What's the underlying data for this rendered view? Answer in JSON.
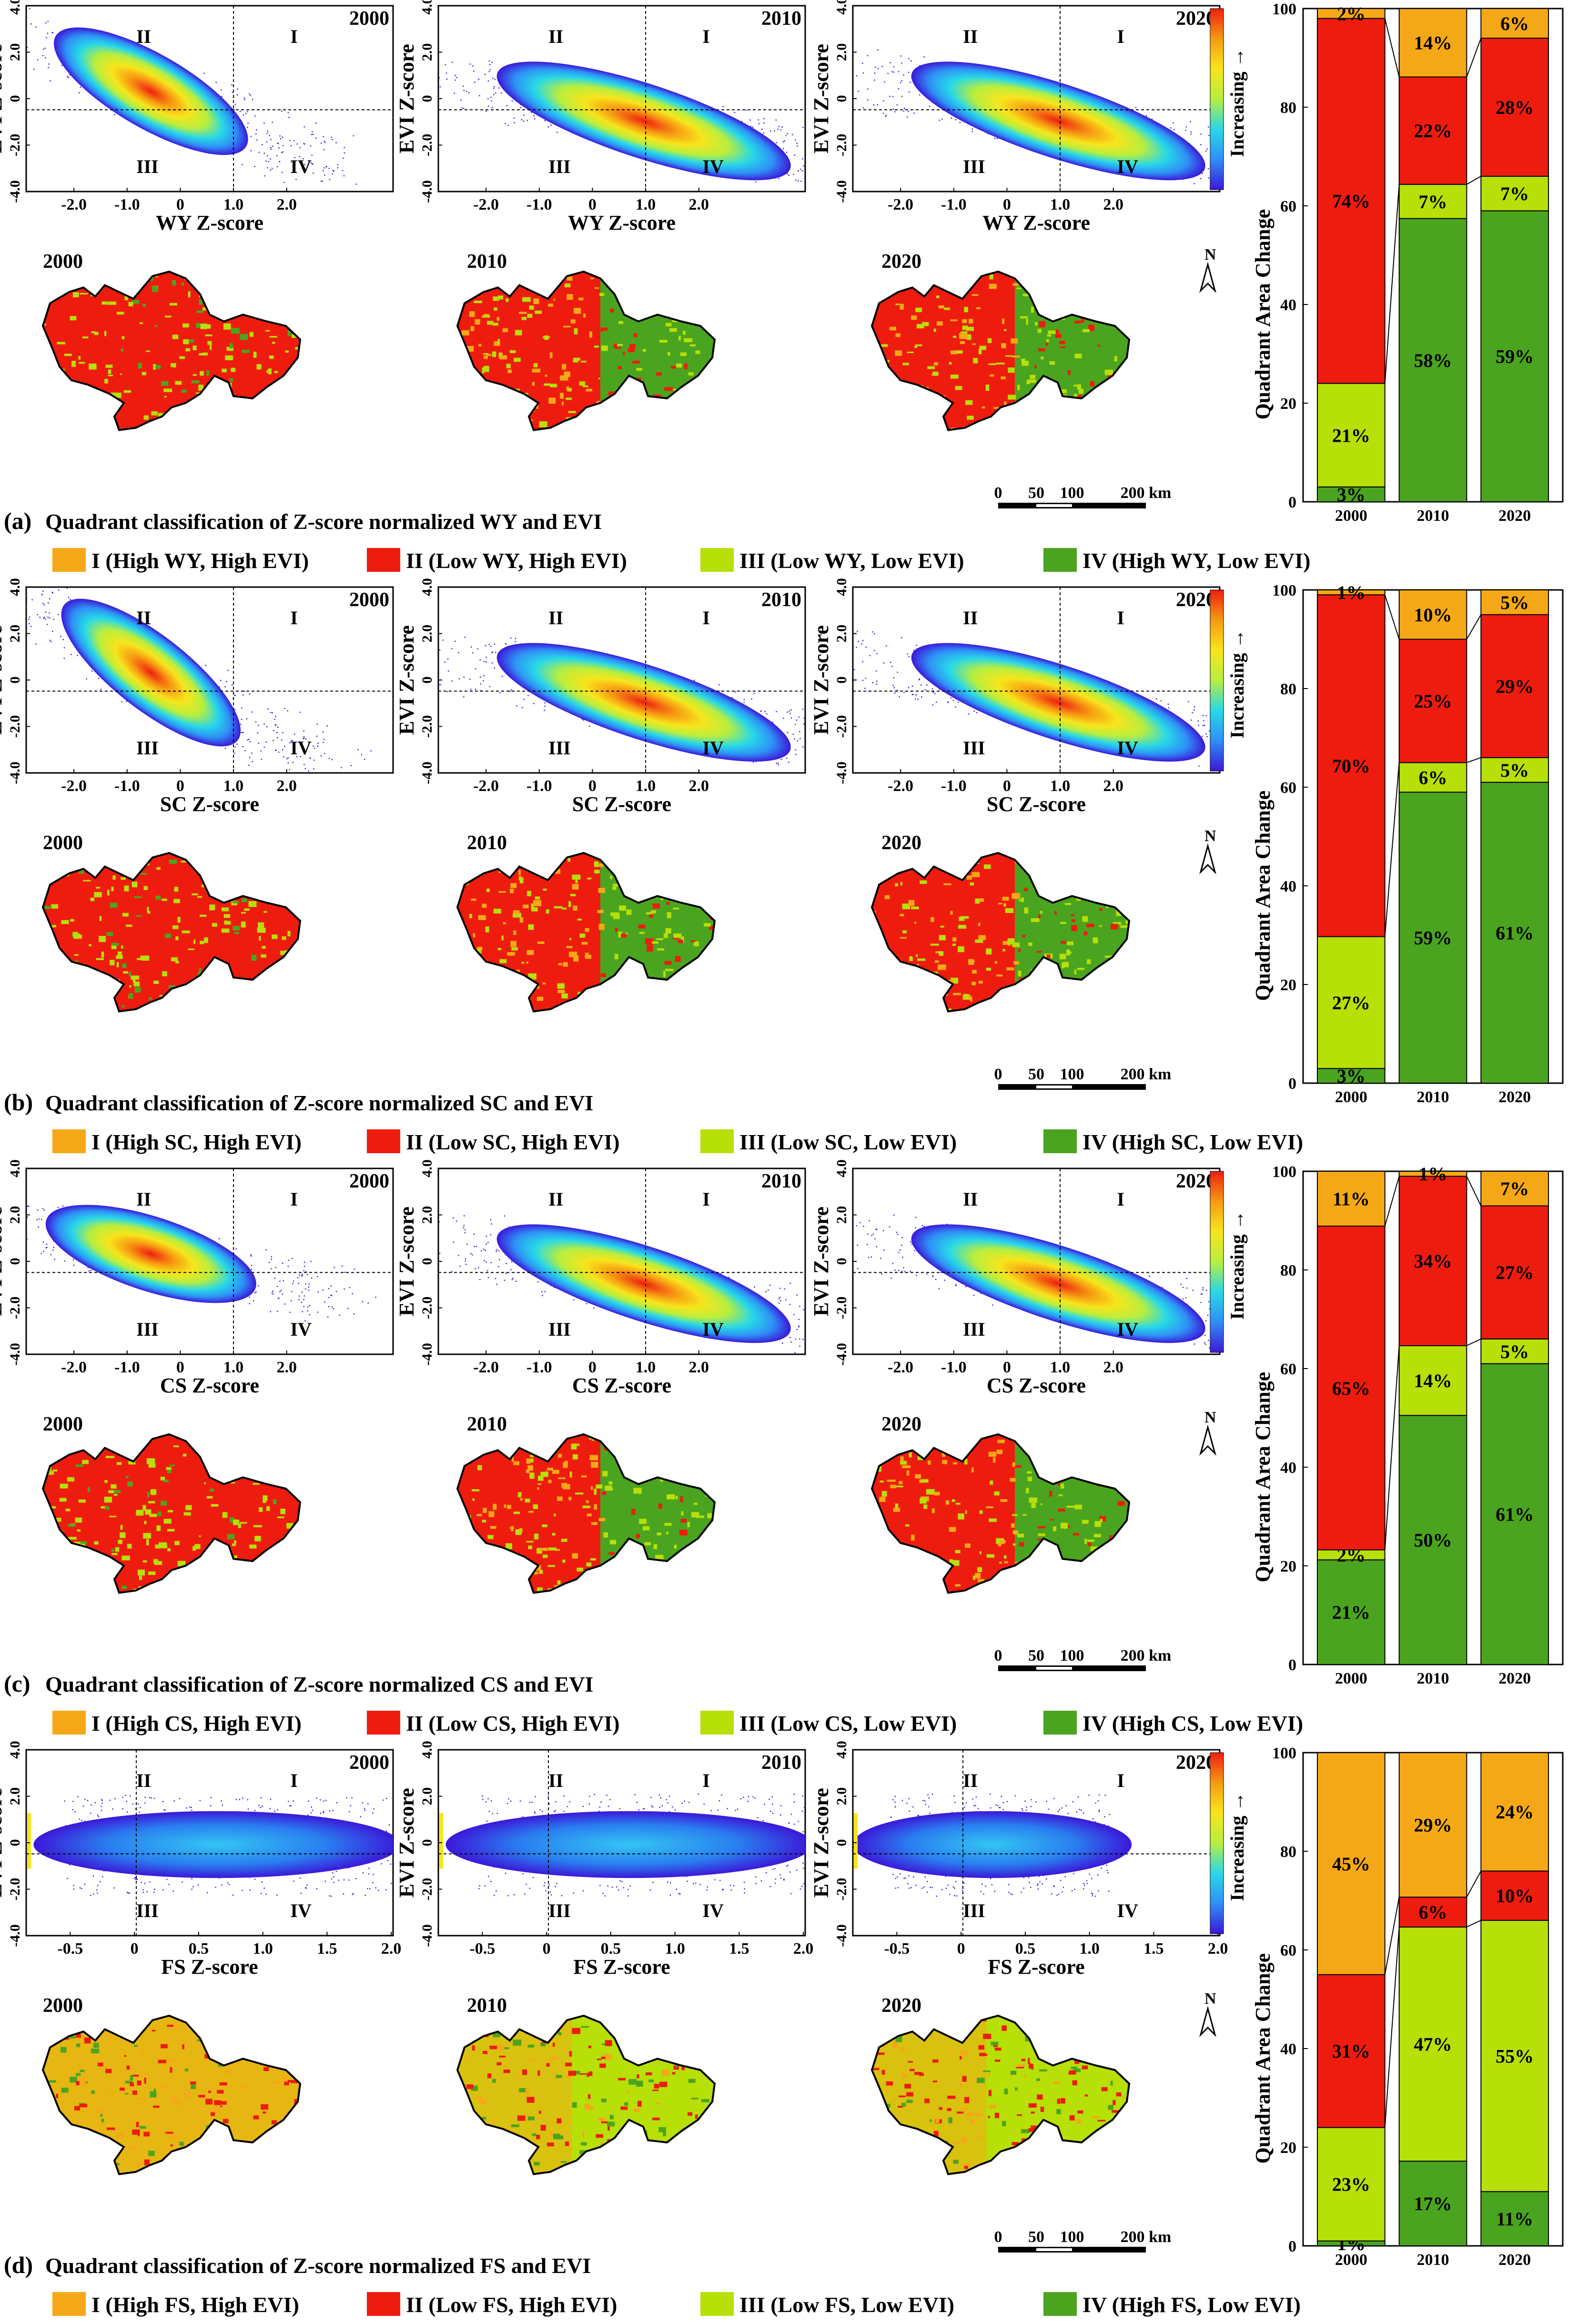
{
  "colors": {
    "q1": "#f5a817",
    "q2": "#ee1c0e",
    "q3": "#b7df08",
    "q4": "#4ba41f",
    "density_ramp": [
      "#3b18d8",
      "#2f8ff6",
      "#27d8e8",
      "#b7ee3f",
      "#f7e51c",
      "#f79a12",
      "#ee1f11"
    ]
  },
  "common": {
    "y_axis_label": "EVI Z-score",
    "colorbar_label": "Increasing →",
    "quadrant_labels": [
      "I",
      "II",
      "III",
      "IV"
    ],
    "north_label": "N",
    "scale_ticks": [
      "0",
      "50",
      "100",
      "200 km"
    ],
    "years": [
      "2000",
      "2010",
      "2020"
    ]
  },
  "panels": [
    {
      "letter": "(a)",
      "title": "Quadrant classification  of Z-score normalized WY and EVI",
      "x_axis_label": "WY Z-score",
      "x_ticks": [
        "-2.0",
        "-1.0",
        "0",
        "1.0",
        "2.0"
      ],
      "y_ticks": [
        "4.0",
        "2.0",
        "0",
        "-2.0",
        "-4.0"
      ],
      "legend": [
        "I (High WY, High EVI)",
        "II (Low WY, High EVI)",
        "III (Low WY, Low EVI)",
        "IV (High WY, Low EVI)"
      ]
    },
    {
      "letter": "(b)",
      "title": "Quadrant classification  of Z-score normalized SC and EVI",
      "x_axis_label": "SC Z-score",
      "x_ticks": [
        "-2.0",
        "-1.0",
        "0",
        "1.0",
        "2.0"
      ],
      "y_ticks": [
        "4.0",
        "2.0",
        "0",
        "-2.0",
        "-4.0"
      ],
      "legend": [
        "I (High SC, High EVI)",
        "II (Low SC, High EVI)",
        "III (Low SC, Low EVI)",
        "IV (High SC, Low EVI)"
      ]
    },
    {
      "letter": "(c)",
      "title": "Quadrant classification  of Z-score normalized CS and EVI",
      "x_axis_label": "CS Z-score",
      "x_ticks": [
        "-2.0",
        "-1.0",
        "0",
        "1.0",
        "2.0"
      ],
      "y_ticks": [
        "4.0",
        "2.0",
        "0",
        "-2.0",
        "-4.0"
      ],
      "legend": [
        "I (High CS, High EVI)",
        "II (Low CS, High EVI)",
        "III (Low CS, Low EVI)",
        "IV (High CS, Low EVI)"
      ]
    },
    {
      "letter": "(d)",
      "title": "Quadrant classification  of Z-score normalized FS and EVI",
      "x_axis_label": "FS Z-score",
      "x_ticks": [
        "-0.5",
        "0",
        "0.5",
        "1.0",
        "1.5",
        "2.0"
      ],
      "y_ticks": [
        "4.0",
        "2.0",
        "0",
        "-2.0",
        "-4.0"
      ],
      "legend": [
        "I (High FS, High EVI)",
        "II (Low FS, High EVI)",
        "III (Low FS, Low EVI)",
        "IV (High FS, Low EVI)"
      ]
    }
  ],
  "chart_data": [
    {
      "type": "bar",
      "stacked": true,
      "panel": "(a)",
      "categories": [
        "2000",
        "2010",
        "2020"
      ],
      "ylabel": "Quadrant Area Change",
      "ylim": [
        0,
        100
      ],
      "y_ticks": [
        "0",
        "20",
        "40",
        "60",
        "80",
        "100"
      ],
      "series": [
        {
          "name": "IV (High WY, Low EVI)",
          "values": [
            3,
            58,
            59
          ],
          "labels": [
            "3%",
            "58%",
            "59%"
          ]
        },
        {
          "name": "III (Low WY, Low EVI)",
          "values": [
            21,
            7,
            7
          ],
          "labels": [
            "21%",
            "7%",
            "7%"
          ]
        },
        {
          "name": "II (Low WY, High EVI)",
          "values": [
            74,
            22,
            28
          ],
          "labels": [
            "74%",
            "22%",
            "28%"
          ]
        },
        {
          "name": "I (High WY, High EVI)",
          "values": [
            2,
            14,
            6
          ],
          "labels": [
            "2%",
            "14%",
            "6%"
          ]
        }
      ]
    },
    {
      "type": "bar",
      "stacked": true,
      "panel": "(b)",
      "categories": [
        "2000",
        "2010",
        "2020"
      ],
      "ylabel": "Quadrant Area Change",
      "ylim": [
        0,
        100
      ],
      "y_ticks": [
        "0",
        "20",
        "40",
        "60",
        "80",
        "100"
      ],
      "series": [
        {
          "name": "IV (High SC, Low EVI)",
          "values": [
            3,
            59,
            61
          ],
          "labels": [
            "3%",
            "59%",
            "61%"
          ]
        },
        {
          "name": "III (Low SC, Low EVI)",
          "values": [
            27,
            6,
            5
          ],
          "labels": [
            "27%",
            "6%",
            "5%"
          ]
        },
        {
          "name": "II (Low SC, High EVI)",
          "values": [
            70,
            25,
            29
          ],
          "labels": [
            "70%",
            "25%",
            "29%"
          ]
        },
        {
          "name": "I (High SC, High EVI)",
          "values": [
            1,
            10,
            5
          ],
          "labels": [
            "1%",
            "10%",
            "5%"
          ]
        }
      ]
    },
    {
      "type": "bar",
      "stacked": true,
      "panel": "(c)",
      "categories": [
        "2000",
        "2010",
        "2020"
      ],
      "ylabel": "Quadrant Area Change",
      "ylim": [
        0,
        100
      ],
      "y_ticks": [
        "0",
        "20",
        "40",
        "60",
        "80",
        "100"
      ],
      "series": [
        {
          "name": "IV (High CS, Low EVI)",
          "values": [
            21,
            50,
            61
          ],
          "labels": [
            "21%",
            "50%",
            "61%"
          ]
        },
        {
          "name": "III (Low CS, Low EVI)",
          "values": [
            2,
            14,
            5
          ],
          "labels": [
            "2%",
            "14%",
            "5%"
          ]
        },
        {
          "name": "II (Low CS, High EVI)",
          "values": [
            65,
            34,
            27
          ],
          "labels": [
            "65%",
            "34%",
            "27%"
          ]
        },
        {
          "name": "I (High CS, High EVI)",
          "values": [
            11,
            1,
            7
          ],
          "labels": [
            "11%",
            "1%",
            "7%"
          ]
        }
      ]
    },
    {
      "type": "bar",
      "stacked": true,
      "panel": "(d)",
      "categories": [
        "2000",
        "2010",
        "2020"
      ],
      "ylabel": "Quadrant Area Change",
      "ylim": [
        0,
        100
      ],
      "y_ticks": [
        "0",
        "20",
        "40",
        "60",
        "80",
        "100"
      ],
      "series": [
        {
          "name": "IV (High FS, Low EVI)",
          "values": [
            1,
            17,
            11
          ],
          "labels": [
            "1%",
            "17%",
            "11%"
          ]
        },
        {
          "name": "III (Low FS, Low EVI)",
          "values": [
            23,
            47,
            55
          ],
          "labels": [
            "23%",
            "47%",
            "55%"
          ]
        },
        {
          "name": "II (Low FS, High EVI)",
          "values": [
            31,
            6,
            10
          ],
          "labels": [
            "31%",
            "6%",
            "10%"
          ]
        },
        {
          "name": "I (High FS, High EVI)",
          "values": [
            45,
            29,
            24
          ],
          "labels": [
            "45%",
            "29%",
            "24%"
          ]
        }
      ]
    }
  ]
}
